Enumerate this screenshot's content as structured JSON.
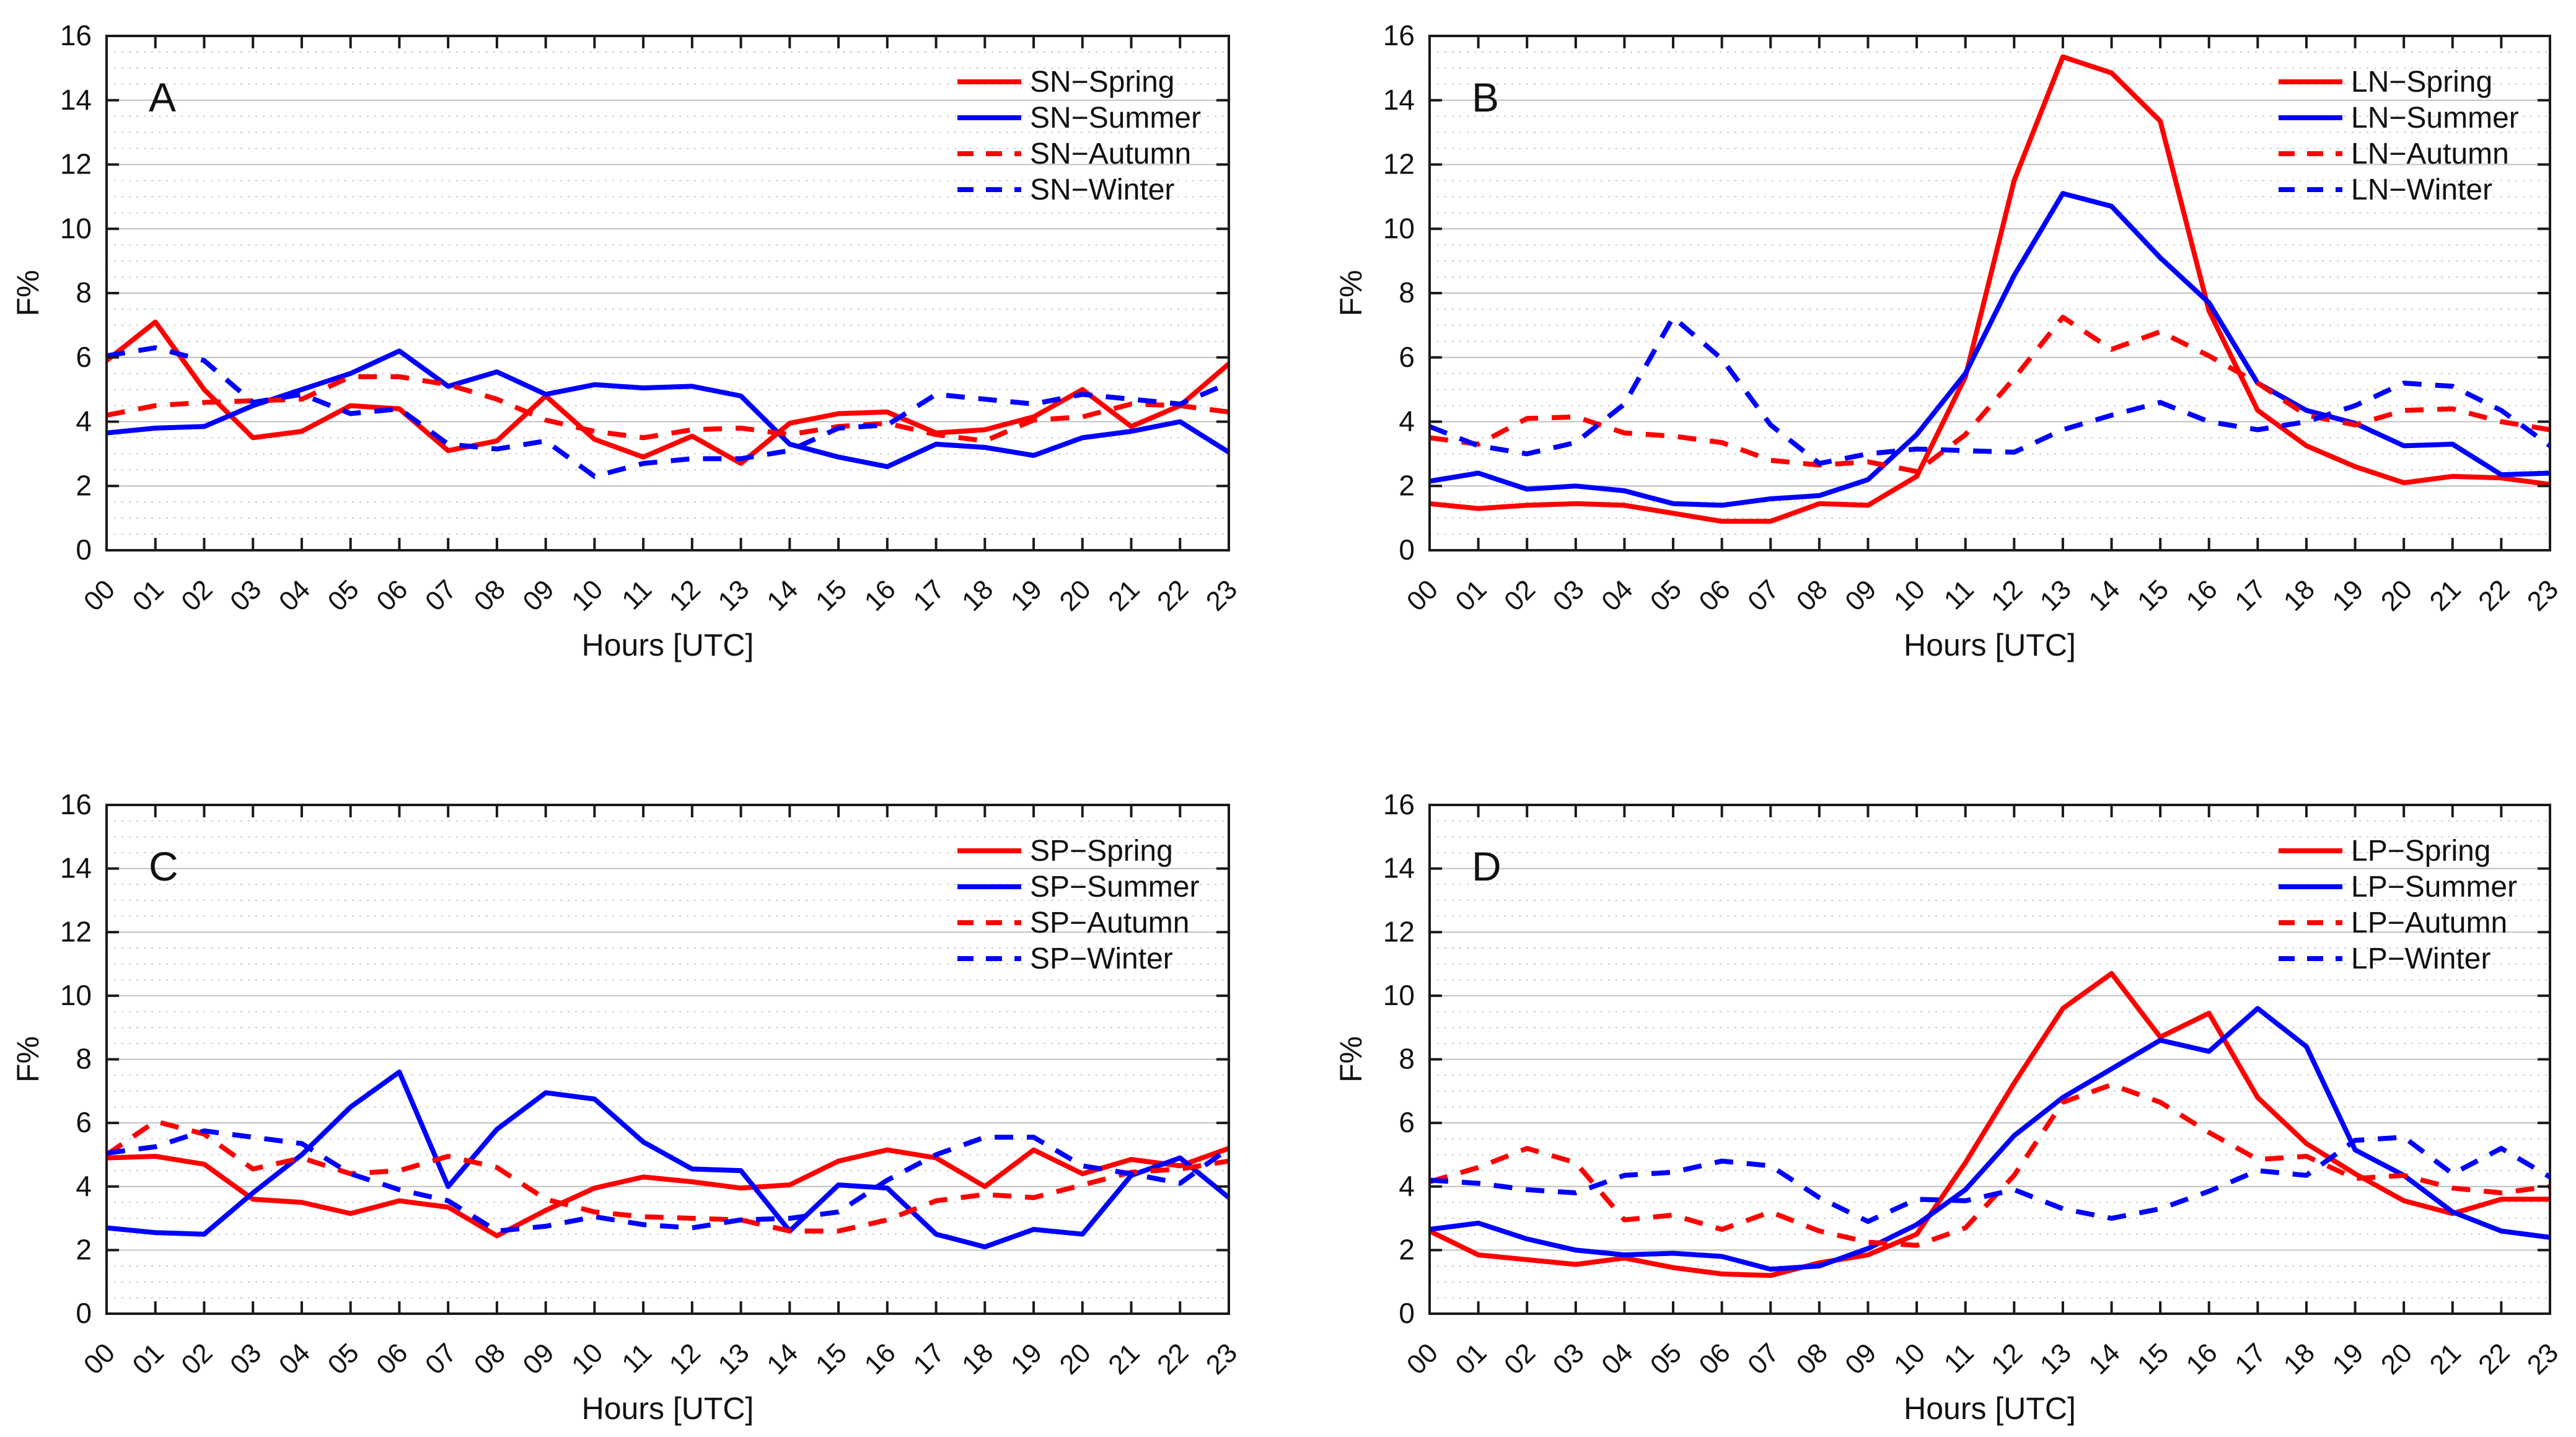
{
  "figure": {
    "background": "#ffffff",
    "xlabel": "Hours [UTC]",
    "ylabel": "F%",
    "x_tick_labels": [
      "00",
      "01",
      "02",
      "03",
      "04",
      "05",
      "06",
      "07",
      "08",
      "09",
      "10",
      "11",
      "12",
      "13",
      "14",
      "15",
      "16",
      "17",
      "18",
      "19",
      "20",
      "21",
      "22",
      "23"
    ],
    "y_tick_labels": [
      "0",
      "2",
      "4",
      "6",
      "8",
      "10",
      "12",
      "14",
      "16"
    ],
    "colors": {
      "red": "#ff0000",
      "blue": "#0000ff",
      "axis": "#1a1a1a",
      "grid_major": "#c0c0c0",
      "grid_minor": "#cccccc"
    }
  },
  "chart_data": [
    {
      "type": "line",
      "panel_label": "A",
      "station": "SN",
      "xlabel": "Hours [UTC]",
      "ylabel": "F%",
      "ylim": [
        0,
        16
      ],
      "y_major_step": 2,
      "y_minor_step": 0.5,
      "legend_position": "top-right",
      "x": [
        "00",
        "01",
        "02",
        "03",
        "04",
        "05",
        "06",
        "07",
        "08",
        "09",
        "10",
        "11",
        "12",
        "13",
        "14",
        "15",
        "16",
        "17",
        "18",
        "19",
        "20",
        "21",
        "22",
        "23"
      ],
      "series": [
        {
          "name": "SN−Spring",
          "color": "#ff0000",
          "style": "solid",
          "values": [
            5.9,
            7.1,
            5.0,
            3.5,
            3.7,
            4.5,
            4.4,
            3.1,
            3.4,
            4.8,
            3.45,
            2.9,
            3.55,
            2.7,
            3.95,
            4.25,
            4.3,
            3.65,
            3.75,
            4.15,
            5.0,
            3.85,
            4.5,
            5.8
          ]
        },
        {
          "name": "SN−Summer",
          "color": "#0000ff",
          "style": "solid",
          "values": [
            3.65,
            3.8,
            3.85,
            4.5,
            5.0,
            5.5,
            6.2,
            5.1,
            5.55,
            4.85,
            5.15,
            5.05,
            5.1,
            4.8,
            3.3,
            2.9,
            2.6,
            3.3,
            3.2,
            2.95,
            3.5,
            3.7,
            4.0,
            3.05
          ]
        },
        {
          "name": "SN−Autumn",
          "color": "#ff0000",
          "style": "dashed",
          "values": [
            4.2,
            4.5,
            4.6,
            4.65,
            4.7,
            5.4,
            5.4,
            5.15,
            4.7,
            4.05,
            3.7,
            3.5,
            3.75,
            3.8,
            3.6,
            3.85,
            3.95,
            3.6,
            3.4,
            4.05,
            4.15,
            4.55,
            4.5,
            4.3
          ]
        },
        {
          "name": "SN−Winter",
          "color": "#0000ff",
          "style": "dashed",
          "values": [
            6.05,
            6.3,
            5.9,
            4.6,
            4.85,
            4.25,
            4.4,
            3.3,
            3.15,
            3.4,
            2.3,
            2.7,
            2.85,
            2.85,
            3.1,
            3.8,
            3.9,
            4.85,
            4.7,
            4.55,
            4.85,
            4.7,
            4.55,
            5.2
          ]
        }
      ]
    },
    {
      "type": "line",
      "panel_label": "B",
      "station": "LN",
      "xlabel": "Hours [UTC]",
      "ylabel": "F%",
      "ylim": [
        0,
        16
      ],
      "y_major_step": 2,
      "y_minor_step": 0.5,
      "legend_position": "top-right",
      "x": [
        "00",
        "01",
        "02",
        "03",
        "04",
        "05",
        "06",
        "07",
        "08",
        "09",
        "10",
        "11",
        "12",
        "13",
        "14",
        "15",
        "16",
        "17",
        "18",
        "19",
        "20",
        "21",
        "22",
        "23"
      ],
      "series": [
        {
          "name": "LN−Spring",
          "color": "#ff0000",
          "style": "solid",
          "values": [
            1.45,
            1.3,
            1.4,
            1.45,
            1.4,
            1.15,
            0.9,
            0.9,
            1.45,
            1.4,
            2.3,
            5.4,
            11.5,
            15.35,
            14.85,
            13.35,
            7.45,
            4.35,
            3.25,
            2.6,
            2.1,
            2.3,
            2.25,
            2.05
          ]
        },
        {
          "name": "LN−Summer",
          "color": "#0000ff",
          "style": "solid",
          "values": [
            2.15,
            2.4,
            1.9,
            2.0,
            1.85,
            1.45,
            1.4,
            1.6,
            1.7,
            2.2,
            3.6,
            5.5,
            8.55,
            11.1,
            10.7,
            9.1,
            7.7,
            5.2,
            4.35,
            3.95,
            3.25,
            3.3,
            2.35,
            2.4
          ]
        },
        {
          "name": "LN−Autumn",
          "color": "#ff0000",
          "style": "dashed",
          "values": [
            3.5,
            3.3,
            4.1,
            4.15,
            3.65,
            3.55,
            3.35,
            2.8,
            2.65,
            2.75,
            2.45,
            3.6,
            5.35,
            7.25,
            6.25,
            6.8,
            6.05,
            5.2,
            4.2,
            3.9,
            4.35,
            4.4,
            4.0,
            3.75
          ]
        },
        {
          "name": "LN−Winter",
          "color": "#0000ff",
          "style": "dashed",
          "values": [
            3.85,
            3.25,
            3.0,
            3.35,
            4.55,
            7.25,
            5.95,
            3.9,
            2.7,
            3.0,
            3.15,
            3.1,
            3.05,
            3.75,
            4.2,
            4.6,
            4.0,
            3.75,
            4.0,
            4.5,
            5.2,
            5.1,
            4.35,
            3.25
          ]
        }
      ]
    },
    {
      "type": "line",
      "panel_label": "C",
      "station": "SP",
      "xlabel": "Hours [UTC]",
      "ylabel": "F%",
      "ylim": [
        0,
        16
      ],
      "y_major_step": 2,
      "y_minor_step": 0.5,
      "legend_position": "top-right",
      "x": [
        "00",
        "01",
        "02",
        "03",
        "04",
        "05",
        "06",
        "07",
        "08",
        "09",
        "10",
        "11",
        "12",
        "13",
        "14",
        "15",
        "16",
        "17",
        "18",
        "19",
        "20",
        "21",
        "22",
        "23"
      ],
      "series": [
        {
          "name": "SP−Spring",
          "color": "#ff0000",
          "style": "solid",
          "values": [
            4.9,
            4.95,
            4.7,
            3.6,
            3.5,
            3.15,
            3.55,
            3.35,
            2.45,
            3.25,
            3.95,
            4.3,
            4.15,
            3.95,
            4.05,
            4.8,
            5.15,
            4.9,
            4.0,
            5.15,
            4.4,
            4.85,
            4.65,
            5.2
          ]
        },
        {
          "name": "SP−Summer",
          "color": "#0000ff",
          "style": "solid",
          "values": [
            2.7,
            2.55,
            2.5,
            3.8,
            5.0,
            6.5,
            7.6,
            4.0,
            5.8,
            6.95,
            6.75,
            5.4,
            4.55,
            4.5,
            2.6,
            4.05,
            3.95,
            2.5,
            2.1,
            2.65,
            2.5,
            4.35,
            4.9,
            3.65
          ]
        },
        {
          "name": "SP−Autumn",
          "color": "#ff0000",
          "style": "dashed",
          "values": [
            5.0,
            6.05,
            5.65,
            4.55,
            4.9,
            4.4,
            4.5,
            4.95,
            4.6,
            3.6,
            3.2,
            3.05,
            3.0,
            2.95,
            2.6,
            2.6,
            2.95,
            3.55,
            3.75,
            3.65,
            4.05,
            4.45,
            4.55,
            4.8
          ]
        },
        {
          "name": "SP−Winter",
          "color": "#0000ff",
          "style": "dashed",
          "values": [
            5.05,
            5.25,
            5.75,
            5.55,
            5.35,
            4.4,
            3.9,
            3.55,
            2.6,
            2.75,
            3.05,
            2.8,
            2.7,
            2.95,
            3.0,
            3.2,
            4.2,
            5.0,
            5.55,
            5.55,
            4.65,
            4.4,
            4.1,
            5.2
          ]
        }
      ]
    },
    {
      "type": "line",
      "panel_label": "D",
      "station": "LP",
      "xlabel": "Hours [UTC]",
      "ylabel": "F%",
      "ylim": [
        0,
        16
      ],
      "y_major_step": 2,
      "y_minor_step": 0.5,
      "legend_position": "top-right",
      "x": [
        "00",
        "01",
        "02",
        "03",
        "04",
        "05",
        "06",
        "07",
        "08",
        "09",
        "10",
        "11",
        "12",
        "13",
        "14",
        "15",
        "16",
        "17",
        "18",
        "19",
        "20",
        "21",
        "22",
        "23"
      ],
      "series": [
        {
          "name": "LP−Spring",
          "color": "#ff0000",
          "style": "solid",
          "values": [
            2.6,
            1.85,
            1.7,
            1.55,
            1.75,
            1.45,
            1.25,
            1.2,
            1.6,
            1.85,
            2.5,
            4.75,
            7.25,
            9.6,
            10.7,
            8.7,
            9.45,
            6.8,
            5.35,
            4.4,
            3.55,
            3.15,
            3.6,
            3.6
          ]
        },
        {
          "name": "LP−Summer",
          "color": "#0000ff",
          "style": "solid",
          "values": [
            2.65,
            2.85,
            2.35,
            2.0,
            1.85,
            1.9,
            1.8,
            1.4,
            1.5,
            2.05,
            2.8,
            3.9,
            5.6,
            6.8,
            7.7,
            8.6,
            8.25,
            9.6,
            8.4,
            5.15,
            4.35,
            3.2,
            2.6,
            2.4
          ]
        },
        {
          "name": "LP−Autumn",
          "color": "#ff0000",
          "style": "dashed",
          "values": [
            4.15,
            4.6,
            5.2,
            4.75,
            2.95,
            3.1,
            2.65,
            3.2,
            2.6,
            2.25,
            2.15,
            2.7,
            4.35,
            6.65,
            7.2,
            6.65,
            5.7,
            4.85,
            4.95,
            4.25,
            4.35,
            3.95,
            3.8,
            4.0
          ]
        },
        {
          "name": "LP−Winter",
          "color": "#0000ff",
          "style": "dashed",
          "values": [
            4.2,
            4.1,
            3.9,
            3.8,
            4.35,
            4.45,
            4.8,
            4.65,
            3.65,
            2.9,
            3.6,
            3.55,
            3.9,
            3.3,
            3.0,
            3.3,
            3.85,
            4.5,
            4.35,
            5.45,
            5.55,
            4.4,
            5.2,
            4.3
          ]
        }
      ]
    }
  ]
}
